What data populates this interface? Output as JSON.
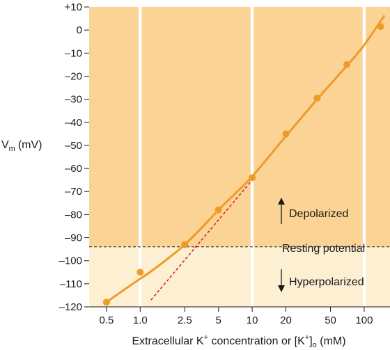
{
  "chart_data": {
    "type": "scatter",
    "ylabel_main": "V",
    "ylabel_sub": "m",
    "ylabel_unit": "(mV)",
    "xlabel_parts": {
      "a": "Extracellular K",
      "a_sup": "+",
      "b": " concentration or [K",
      "b_sup": "+",
      "c": "]",
      "c_sub": "o",
      "d": " (mM)"
    },
    "x_scale": "log",
    "xlim": [
      0.35,
      170
    ],
    "ylim": [
      -120,
      10
    ],
    "x_ticks": [
      {
        "value": 0.5,
        "label": "0.5"
      },
      {
        "value": 1,
        "label": "1.0"
      },
      {
        "value": 2.5,
        "label": "2.5"
      },
      {
        "value": 5,
        "label": "5"
      },
      {
        "value": 10,
        "label": "10"
      },
      {
        "value": 20,
        "label": "20"
      },
      {
        "value": 50,
        "label": "50"
      },
      {
        "value": 100,
        "label": "100"
      }
    ],
    "y_ticks": [
      {
        "value": 10,
        "label": "+10"
      },
      {
        "value": 0,
        "label": "0"
      },
      {
        "value": -10,
        "label": "–10"
      },
      {
        "value": -20,
        "label": "–20"
      },
      {
        "value": -30,
        "label": "–30"
      },
      {
        "value": -40,
        "label": "–40"
      },
      {
        "value": -50,
        "label": "–50"
      },
      {
        "value": -60,
        "label": "–60"
      },
      {
        "value": -70,
        "label": "–70"
      },
      {
        "value": -80,
        "label": "–80"
      },
      {
        "value": -90,
        "label": "–90"
      },
      {
        "value": -100,
        "label": "–100"
      },
      {
        "value": -110,
        "label": "–110"
      },
      {
        "value": -120,
        "label": "–120"
      }
    ],
    "vertical_gridlines_at": [
      1,
      10,
      100
    ],
    "points": [
      {
        "x": 0.5,
        "y": -118
      },
      {
        "x": 1,
        "y": -105
      },
      {
        "x": 2.5,
        "y": -93
      },
      {
        "x": 5,
        "y": -78
      },
      {
        "x": 10,
        "y": -64
      },
      {
        "x": 20,
        "y": -45
      },
      {
        "x": 38,
        "y": -29.5
      },
      {
        "x": 70,
        "y": -15
      },
      {
        "x": 140,
        "y": 1.5
      }
    ],
    "fit_curve": [
      {
        "x": 0.5,
        "y": -118
      },
      {
        "x": 0.8,
        "y": -111
      },
      {
        "x": 1.3,
        "y": -104
      },
      {
        "x": 2.0,
        "y": -97
      },
      {
        "x": 2.5,
        "y": -93
      },
      {
        "x": 3.5,
        "y": -86
      },
      {
        "x": 5,
        "y": -78
      },
      {
        "x": 7,
        "y": -71
      },
      {
        "x": 10,
        "y": -63.5
      },
      {
        "x": 20,
        "y": -46
      },
      {
        "x": 38,
        "y": -30
      },
      {
        "x": 70,
        "y": -15.5
      },
      {
        "x": 100,
        "y": -6.5
      },
      {
        "x": 150,
        "y": 6
      }
    ],
    "nernst_line": [
      {
        "x": 1.25,
        "y": -117
      },
      {
        "x": 10,
        "y": -65
      }
    ],
    "resting_potential": -94,
    "annotations": {
      "resting": "Resting potential",
      "depolarized": "Depolarized",
      "hyperpolarized": "Hyperpolarized"
    },
    "colors": {
      "upper_region": "#fbd394",
      "lower_region": "#fdf0d2",
      "curve": "#f09a28",
      "points": "#f09a28",
      "nernst": "#d6202e",
      "resting_line": "#1a1a1a",
      "grid": "#ffffff"
    }
  }
}
